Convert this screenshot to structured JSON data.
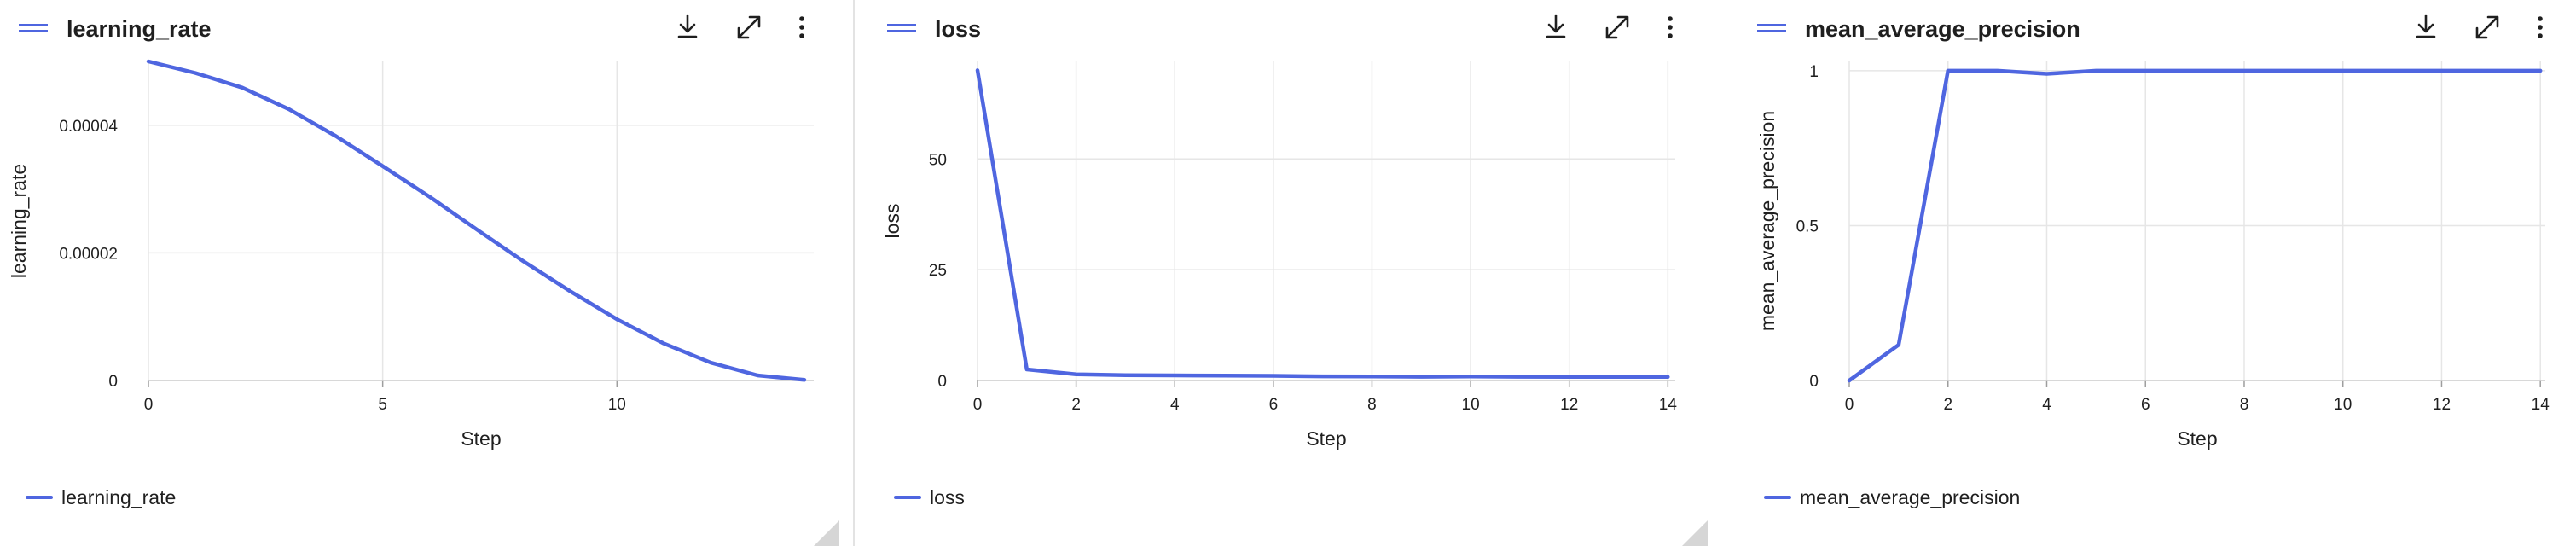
{
  "panels": [
    {
      "title": "learning_rate",
      "legend": "learning_rate"
    },
    {
      "title": "loss",
      "legend": "loss"
    },
    {
      "title": "mean_average_precision",
      "legend": "mean_average_precision"
    }
  ],
  "icons": {
    "drag": "drag-handle-icon",
    "download": "download-icon",
    "expand": "expand-icon",
    "more": "more-vertical-icon"
  },
  "colors": {
    "series": "#4F66E0",
    "grid": "#e6e6e6",
    "text": "#1f1f1f"
  },
  "chart_data": [
    {
      "type": "line",
      "title": "learning_rate",
      "xlabel": "Step",
      "ylabel": "learning_rate",
      "xlim": [
        0,
        14.2
      ],
      "ylim": [
        0,
        5e-05
      ],
      "xticks": [
        0,
        5,
        10
      ],
      "xtick_labels": [
        "0",
        "5",
        "10"
      ],
      "yticks": [
        0,
        2e-05,
        4e-05
      ],
      "ytick_labels": [
        "0",
        "0.00002",
        "0.00004"
      ],
      "grid": true,
      "legend_position": "bottom-left",
      "series": [
        {
          "name": "learning_rate",
          "x": [
            0,
            1,
            2,
            3,
            4,
            5,
            6,
            7,
            8,
            9,
            10,
            11,
            12,
            13,
            14
          ],
          "y": [
            5e-05,
            4.82e-05,
            4.59e-05,
            4.25e-05,
            3.83e-05,
            3.36e-05,
            2.88e-05,
            2.37e-05,
            1.87e-05,
            1.4e-05,
            9.6e-06,
            5.8e-06,
            2.8e-06,
            8e-07,
            1e-07
          ]
        }
      ]
    },
    {
      "type": "line",
      "title": "loss",
      "xlabel": "Step",
      "ylabel": "loss",
      "xlim": [
        0,
        14.15
      ],
      "ylim": [
        0,
        72
      ],
      "xticks": [
        0,
        2,
        4,
        6,
        8,
        10,
        12,
        14
      ],
      "xtick_labels": [
        "0",
        "2",
        "4",
        "6",
        "8",
        "10",
        "12",
        "14"
      ],
      "yticks": [
        0,
        25,
        50
      ],
      "ytick_labels": [
        "0",
        "25",
        "50"
      ],
      "grid": true,
      "legend_position": "bottom-left",
      "series": [
        {
          "name": "loss",
          "x": [
            0,
            1,
            2,
            3,
            4,
            5,
            6,
            7,
            8,
            9,
            10,
            11,
            12,
            13,
            14
          ],
          "y": [
            70,
            2.5,
            1.4,
            1.2,
            1.15,
            1.1,
            1.05,
            0.95,
            0.9,
            0.85,
            0.9,
            0.85,
            0.8,
            0.8,
            0.8
          ]
        }
      ]
    },
    {
      "type": "line",
      "title": "mean_average_precision",
      "xlabel": "Step",
      "ylabel": "mean_average_precision",
      "xlim": [
        0,
        14.1
      ],
      "ylim": [
        0,
        1.03
      ],
      "xticks": [
        0,
        2,
        4,
        6,
        8,
        10,
        12,
        14
      ],
      "xtick_labels": [
        "0",
        "2",
        "4",
        "6",
        "8",
        "10",
        "12",
        "14"
      ],
      "yticks": [
        0,
        0.5,
        1
      ],
      "ytick_labels": [
        "0",
        "0.5",
        "1"
      ],
      "grid": true,
      "legend_position": "bottom-left",
      "series": [
        {
          "name": "mean_average_precision",
          "x": [
            0,
            1,
            2,
            3,
            4,
            5,
            6,
            7,
            8,
            9,
            10,
            11,
            12,
            13,
            14
          ],
          "y": [
            0,
            0.115,
            1,
            1,
            0.99,
            1,
            1,
            1,
            1,
            1,
            1,
            1,
            1,
            1,
            1
          ]
        }
      ]
    }
  ]
}
